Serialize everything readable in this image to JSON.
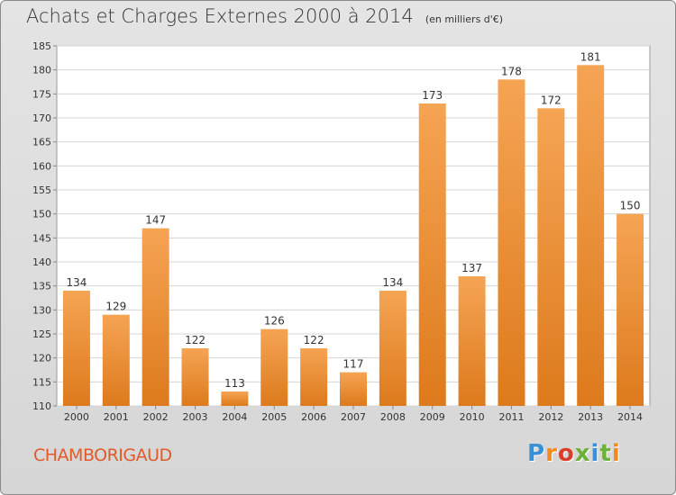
{
  "chart": {
    "title": "Achats et Charges Externes 2000 à 2014",
    "unit": "(en milliers d'€)",
    "commune": "CHAMBORIGAUD",
    "brand": "Proxiti",
    "bar_color_top": "#f5a454",
    "bar_color_bottom": "#dd7a1c",
    "logo_colors": [
      "#3b8fd4",
      "#f08c1e",
      "#d93e2b",
      "#6cb13a",
      "#3b8fd4",
      "#6cb13a",
      "#f08c1e"
    ]
  },
  "chart_data": {
    "type": "bar",
    "categories": [
      "2000",
      "2001",
      "2002",
      "2003",
      "2004",
      "2005",
      "2006",
      "2007",
      "2008",
      "2009",
      "2010",
      "2011",
      "2012",
      "2013",
      "2014"
    ],
    "values": [
      134,
      129,
      147,
      122,
      113,
      126,
      122,
      117,
      134,
      173,
      137,
      178,
      172,
      181,
      150
    ],
    "ylim": [
      110,
      185
    ],
    "yticks": [
      110,
      115,
      120,
      125,
      130,
      135,
      140,
      145,
      150,
      155,
      160,
      165,
      170,
      175,
      180,
      185
    ],
    "grid": true
  }
}
